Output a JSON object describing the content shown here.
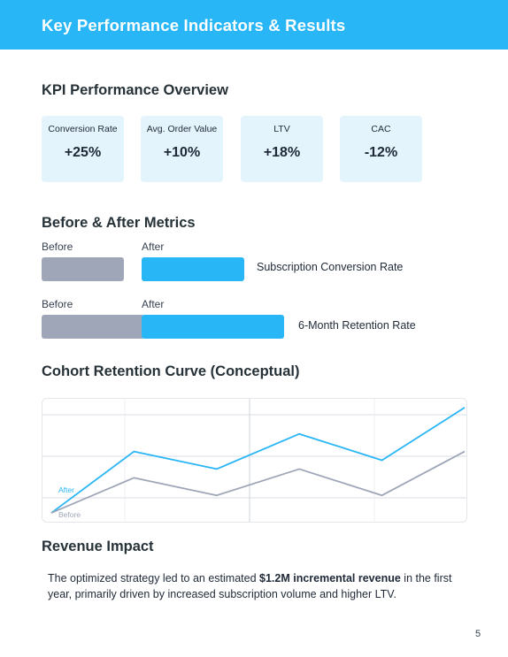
{
  "header": {
    "title": "Key Performance Indicators & Results"
  },
  "kpi_section": {
    "heading": "KPI Performance Overview",
    "cards": [
      {
        "label": "Conversion Rate",
        "value": "+25%"
      },
      {
        "label": "Avg. Order Value",
        "value": "+10%"
      },
      {
        "label": "LTV",
        "value": "+18%"
      },
      {
        "label": "CAC",
        "value": "-12%"
      }
    ]
  },
  "before_after": {
    "heading": "Before & After Metrics",
    "before_label": "Before",
    "after_label": "After",
    "metrics": [
      {
        "name": "Subscription Conversion Rate"
      },
      {
        "name": "6-Month Retention Rate"
      }
    ]
  },
  "cohort": {
    "heading": "Cohort Retention Curve (Conceptual)"
  },
  "chart_data": {
    "type": "line",
    "x": [
      0,
      1,
      2,
      3,
      4,
      5
    ],
    "series": [
      {
        "name": "After",
        "values": [
          0.5,
          4.0,
          3.0,
          5.0,
          3.5,
          6.5
        ],
        "color": "#29b6f6"
      },
      {
        "name": "Before",
        "values": [
          0.5,
          2.5,
          1.5,
          3.0,
          1.5,
          4.0
        ],
        "color": "#9ea6b8"
      }
    ],
    "ylim": [
      0,
      7
    ],
    "grid": true,
    "legend": "inline-bottom-left"
  },
  "revenue": {
    "heading": "Revenue Impact",
    "text_before": "The optimized strategy led to an estimated ",
    "text_bold": "$1.2M incremental revenue",
    "text_after": " in the first year, primarily driven by increased subscription volume and higher LTV."
  },
  "page": {
    "number": "5"
  },
  "colors": {
    "accent": "#29b6f6",
    "before": "#9ea6b8",
    "card_bg": "#e3f4fd"
  }
}
